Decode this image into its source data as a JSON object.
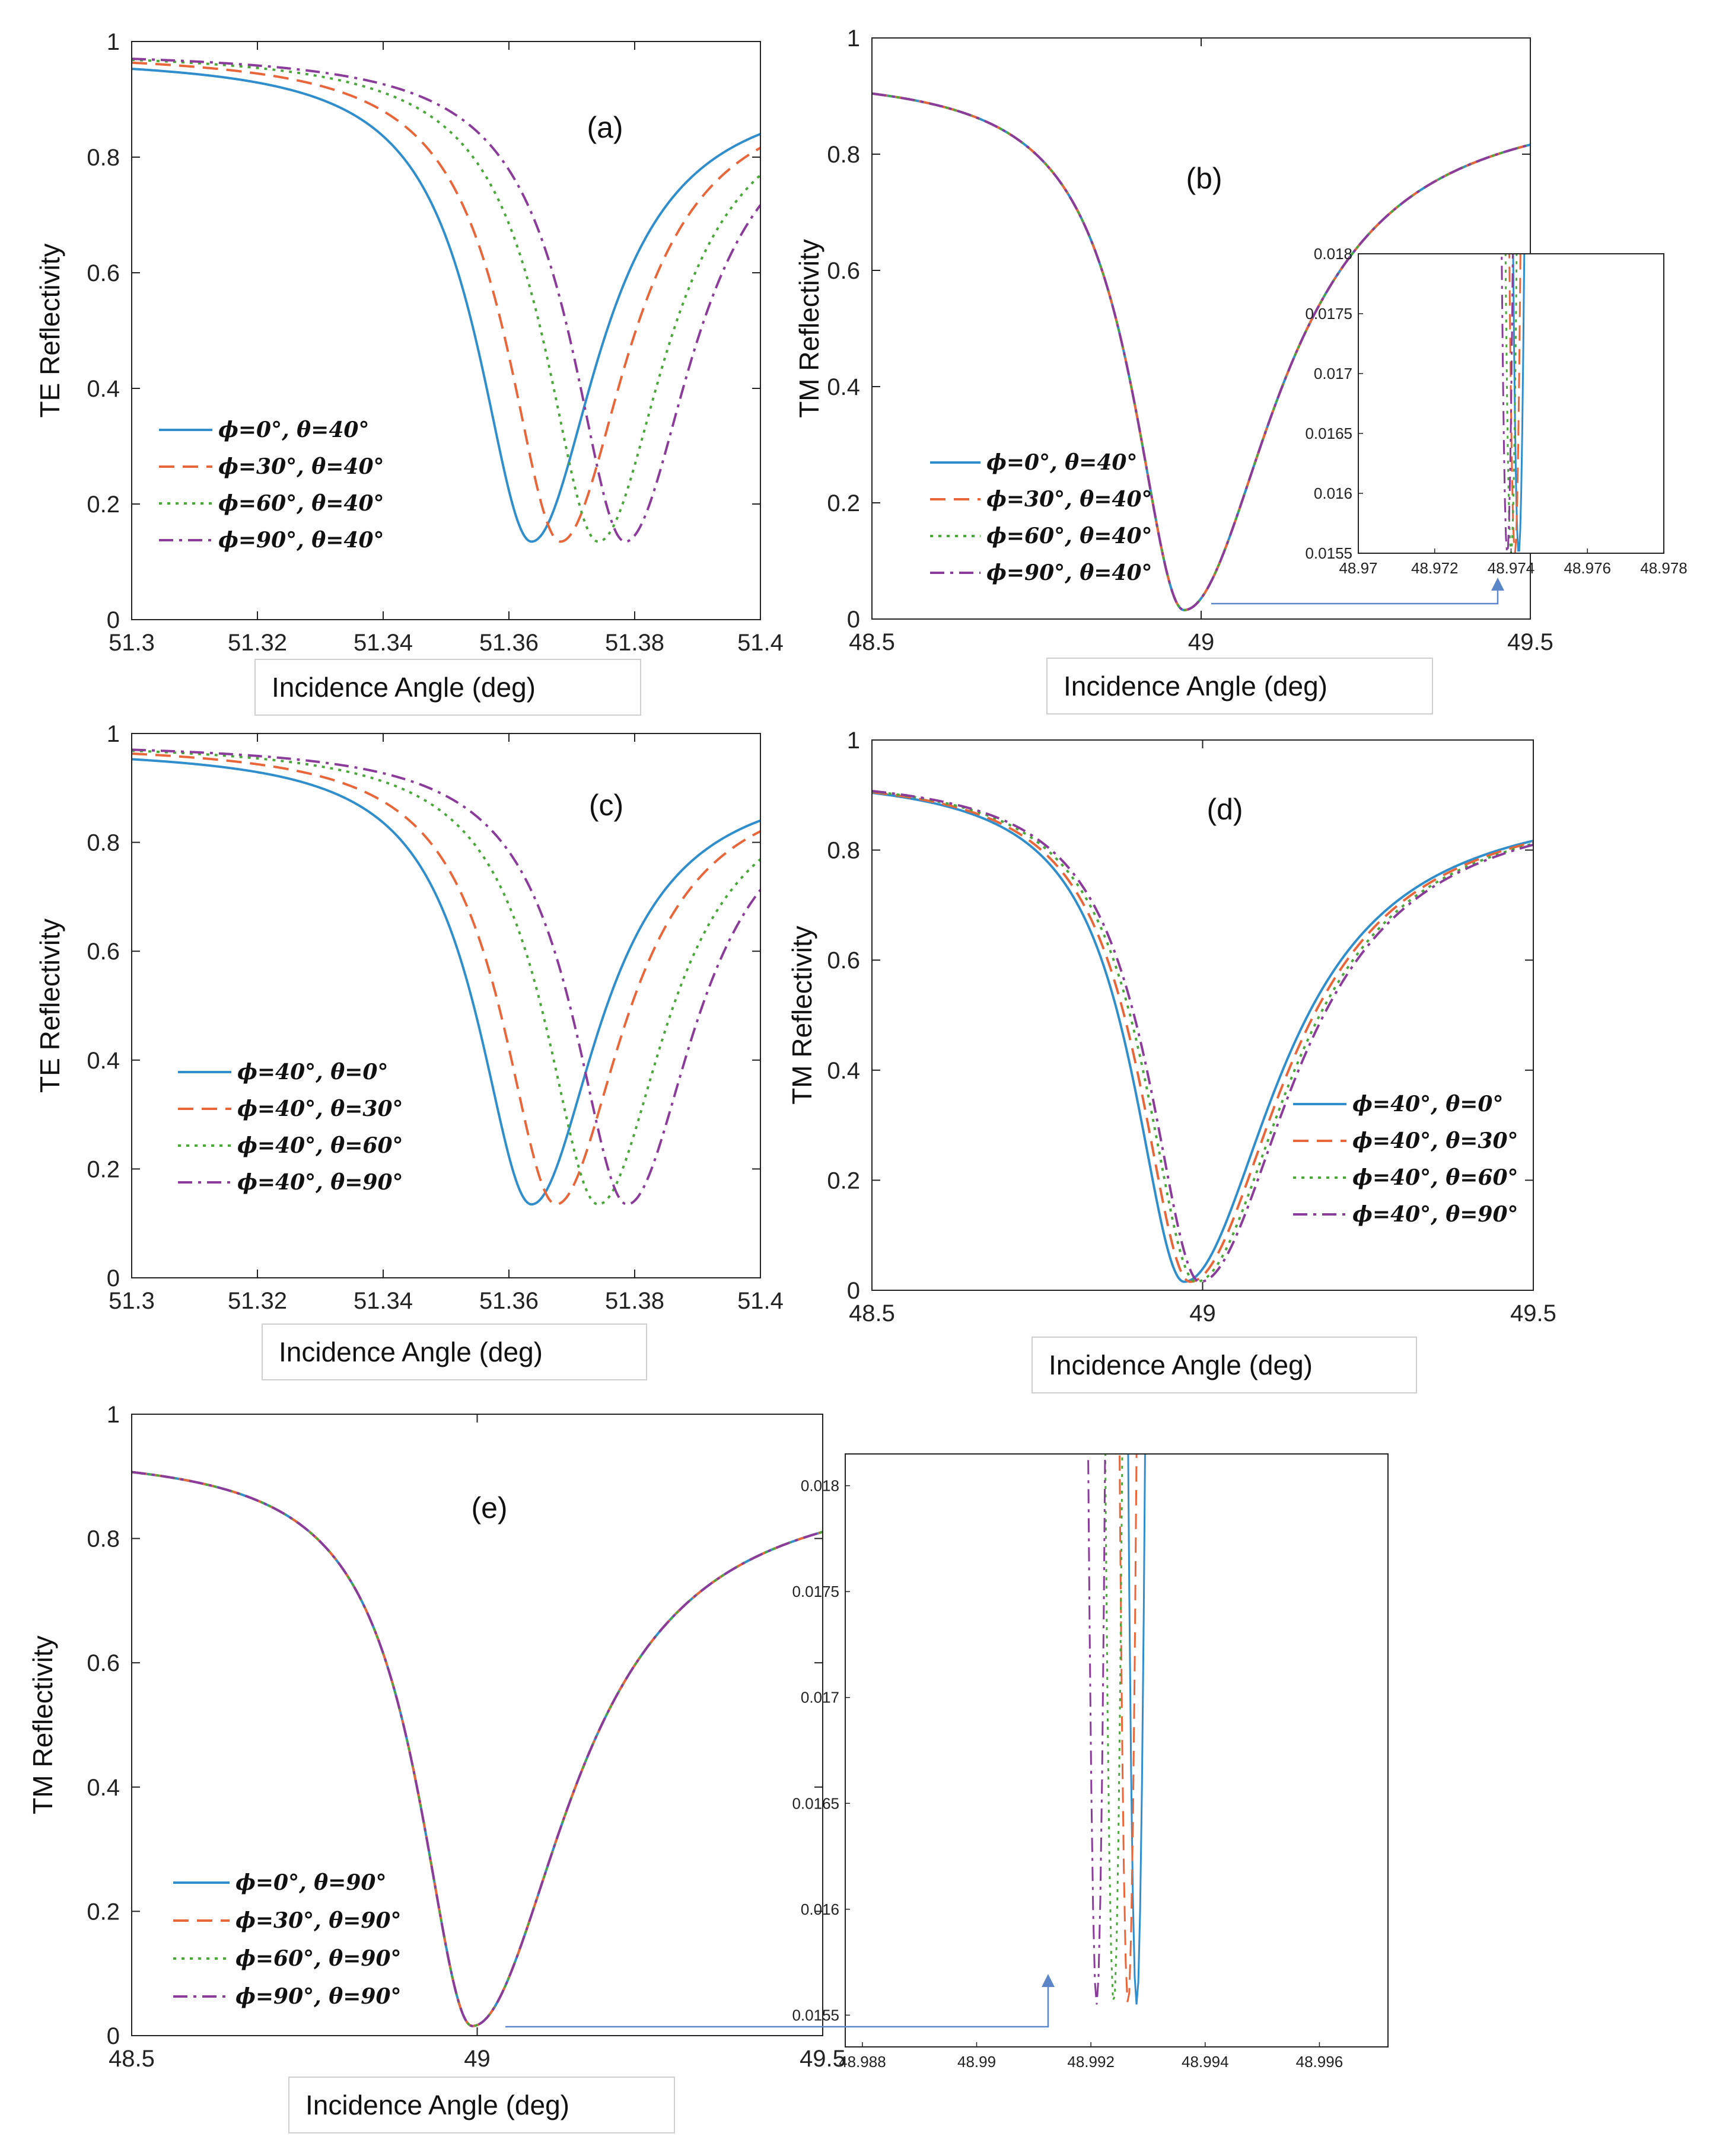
{
  "figure": {
    "shared_xlabel": "Incidence Angle (deg)"
  },
  "colors": {
    "s0": "#2f8ecb",
    "s1": "#e8663a",
    "s2": "#4aa83a",
    "s3": "#8b3c9b",
    "axis": "#222222",
    "arrow": "#5b86c7"
  },
  "chart_data": [
    {
      "id": "a",
      "panel_label": "(a)",
      "type": "line",
      "ylabel": "TE Reflectivity",
      "xlabel": "Incidence Angle (deg)",
      "xlim": [
        51.3,
        51.4
      ],
      "ylim": [
        0,
        1
      ],
      "xticks": [
        51.3,
        51.32,
        51.34,
        51.36,
        51.38,
        51.4
      ],
      "xtick_labels": [
        "51.3",
        "51.32",
        "51.34",
        "51.36",
        "51.38",
        "51.4"
      ],
      "yticks": [
        0,
        0.2,
        0.4,
        0.6,
        0.8,
        1
      ],
      "ytick_labels": [
        "0",
        "0.2",
        "0.4",
        "0.6",
        "0.8",
        "1"
      ],
      "legend_position": "lower-left",
      "series": [
        {
          "name": "ϕ=0°, θ=40°",
          "style": "solid",
          "color": "#2f8ecb",
          "x0": 51.3636,
          "r_min": 0.135,
          "r_left": 0.975,
          "hw_left": 0.0105,
          "r_right": 0.93,
          "hw_right": 0.013
        },
        {
          "name": "ϕ=30°, θ=40°",
          "style": "dashed",
          "color": "#e8663a",
          "x0": 51.3682,
          "r_min": 0.135,
          "r_left": 0.983,
          "hw_left": 0.0105,
          "r_right": 0.93,
          "hw_right": 0.013
        },
        {
          "name": "ϕ=60°, θ=40°",
          "style": "dotted",
          "color": "#4aa83a",
          "x0": 51.3742,
          "r_min": 0.135,
          "r_left": 0.985,
          "hw_left": 0.0105,
          "r_right": 0.93,
          "hw_right": 0.013
        },
        {
          "name": "ϕ=90°, θ=40°",
          "style": "dashdot",
          "color": "#8b3c9b",
          "x0": 51.3785,
          "r_min": 0.135,
          "r_left": 0.985,
          "hw_left": 0.0105,
          "r_right": 0.93,
          "hw_right": 0.013
        }
      ]
    },
    {
      "id": "b",
      "panel_label": "(b)",
      "type": "line",
      "ylabel": "TM Reflectivity",
      "xlabel": "Incidence Angle (deg)",
      "xlim": [
        48.5,
        49.5
      ],
      "ylim": [
        0,
        1
      ],
      "xticks": [
        48.5,
        49,
        49.5
      ],
      "xtick_labels": [
        "48.5",
        "49",
        "49.5"
      ],
      "yticks": [
        0,
        0.2,
        0.4,
        0.6,
        0.8,
        1
      ],
      "ytick_labels": [
        "0",
        "0.2",
        "0.4",
        "0.6",
        "0.8",
        "1"
      ],
      "legend_position": "lower-left",
      "series": [
        {
          "name": "ϕ=0°, θ=40°",
          "style": "solid",
          "color": "#2f8ecb",
          "x0": 48.974,
          "r_min": 0.0155,
          "r_left": 0.94,
          "hw_left": 0.095,
          "r_right": 0.9,
          "hw_right": 0.17
        },
        {
          "name": "ϕ=30°, θ=40°",
          "style": "dashed",
          "color": "#e8663a",
          "x0": 48.974,
          "r_min": 0.0155,
          "r_left": 0.94,
          "hw_left": 0.095,
          "r_right": 0.9,
          "hw_right": 0.17
        },
        {
          "name": "ϕ=60°, θ=40°",
          "style": "dotted",
          "color": "#4aa83a",
          "x0": 48.974,
          "r_min": 0.0155,
          "r_left": 0.94,
          "hw_left": 0.095,
          "r_right": 0.9,
          "hw_right": 0.17
        },
        {
          "name": "ϕ=90°, θ=40°",
          "style": "dashdot",
          "color": "#8b3c9b",
          "x0": 48.974,
          "r_min": 0.0155,
          "r_left": 0.94,
          "hw_left": 0.095,
          "r_right": 0.9,
          "hw_right": 0.17
        }
      ],
      "inset": {
        "xlim": [
          48.97,
          48.978
        ],
        "ylim": [
          0.0155,
          0.018
        ],
        "xticks": [
          48.97,
          48.972,
          48.974,
          48.976,
          48.978
        ],
        "xtick_labels": [
          "48.97",
          "48.972",
          "48.974",
          "48.976",
          "48.978"
        ],
        "yticks": [
          0.0155,
          0.016,
          0.0165,
          0.017,
          0.0175,
          0.018
        ],
        "ytick_labels": [
          "0.0155",
          "0.016",
          "0.0165",
          "0.017",
          "0.0175",
          "0.018"
        ],
        "series": [
          {
            "name": "ϕ=0°, θ=40°",
            "style": "solid",
            "color": "#2f8ecb",
            "x0": 48.9742,
            "y_min": 0.0155,
            "curv": 118000
          },
          {
            "name": "ϕ=30°, θ=40°",
            "style": "dashed",
            "color": "#e8663a",
            "x0": 48.9741,
            "y_min": 0.0155,
            "curv": 118000
          },
          {
            "name": "ϕ=60°, θ=40°",
            "style": "dotted",
            "color": "#4aa83a",
            "x0": 48.974,
            "y_min": 0.0155,
            "curv": 118000
          },
          {
            "name": "ϕ=90°, θ=40°",
            "style": "dashdot",
            "color": "#8b3c9b",
            "x0": 48.9739,
            "y_min": 0.0155,
            "curv": 118000
          }
        ]
      }
    },
    {
      "id": "c",
      "panel_label": "(c)",
      "type": "line",
      "ylabel": "TE Reflectivity",
      "xlabel": "Incidence Angle (deg)",
      "xlim": [
        51.3,
        51.4
      ],
      "ylim": [
        0,
        1
      ],
      "xticks": [
        51.3,
        51.32,
        51.34,
        51.36,
        51.38,
        51.4
      ],
      "xtick_labels": [
        "51.3",
        "51.32",
        "51.34",
        "51.36",
        "51.38",
        "51.4"
      ],
      "yticks": [
        0,
        0.2,
        0.4,
        0.6,
        0.8,
        1
      ],
      "ytick_labels": [
        "0",
        "0.2",
        "0.4",
        "0.6",
        "0.8",
        "1"
      ],
      "legend_position": "lower-left",
      "series": [
        {
          "name": "ϕ=40°, θ=0°",
          "style": "solid",
          "color": "#2f8ecb",
          "x0": 51.3636,
          "r_min": 0.135,
          "r_left": 0.975,
          "hw_left": 0.0105,
          "r_right": 0.93,
          "hw_right": 0.013
        },
        {
          "name": "ϕ=40°, θ=30°",
          "style": "dashed",
          "color": "#e8663a",
          "x0": 51.3675,
          "r_min": 0.135,
          "r_left": 0.983,
          "hw_left": 0.0105,
          "r_right": 0.93,
          "hw_right": 0.013
        },
        {
          "name": "ϕ=40°, θ=60°",
          "style": "dotted",
          "color": "#4aa83a",
          "x0": 51.3742,
          "r_min": 0.135,
          "r_left": 0.985,
          "hw_left": 0.0105,
          "r_right": 0.93,
          "hw_right": 0.013
        },
        {
          "name": "ϕ=40°, θ=90°",
          "style": "dashdot",
          "color": "#8b3c9b",
          "x0": 51.3788,
          "r_min": 0.135,
          "r_left": 0.985,
          "hw_left": 0.0105,
          "r_right": 0.93,
          "hw_right": 0.013
        }
      ]
    },
    {
      "id": "d",
      "panel_label": "(d)",
      "type": "line",
      "ylabel": "TM Reflectivity",
      "xlabel": "Incidence Angle (deg)",
      "xlim": [
        48.5,
        49.5
      ],
      "ylim": [
        0,
        1
      ],
      "xticks": [
        48.5,
        49,
        49.5
      ],
      "xtick_labels": [
        "48.5",
        "49",
        "49.5"
      ],
      "yticks": [
        0,
        0.2,
        0.4,
        0.6,
        0.8,
        1
      ],
      "ytick_labels": [
        "0",
        "0.2",
        "0.4",
        "0.6",
        "0.8",
        "1"
      ],
      "legend_position": "lower-right",
      "series": [
        {
          "name": "ϕ=40°, θ=0°",
          "style": "solid",
          "color": "#2f8ecb",
          "x0": 48.972,
          "r_min": 0.0155,
          "r_left": 0.94,
          "hw_left": 0.095,
          "r_right": 0.9,
          "hw_right": 0.17
        },
        {
          "name": "ϕ=40°, θ=30°",
          "style": "dashed",
          "color": "#e8663a",
          "x0": 48.981,
          "r_min": 0.0155,
          "r_left": 0.94,
          "hw_left": 0.095,
          "r_right": 0.9,
          "hw_right": 0.17
        },
        {
          "name": "ϕ=40°, θ=60°",
          "style": "dotted",
          "color": "#4aa83a",
          "x0": 48.99,
          "r_min": 0.0155,
          "r_left": 0.94,
          "hw_left": 0.095,
          "r_right": 0.9,
          "hw_right": 0.17
        },
        {
          "name": "ϕ=40°, θ=90°",
          "style": "dashdot",
          "color": "#8b3c9b",
          "x0": 48.996,
          "r_min": 0.0155,
          "r_left": 0.94,
          "hw_left": 0.095,
          "r_right": 0.9,
          "hw_right": 0.17
        }
      ]
    },
    {
      "id": "e",
      "panel_label": "(e)",
      "type": "line",
      "ylabel": "TM Reflectivity",
      "xlabel": "Incidence Angle (deg)",
      "xlim": [
        48.5,
        49.5
      ],
      "ylim": [
        0,
        1
      ],
      "xticks": [
        48.5,
        49,
        49.5
      ],
      "xtick_labels": [
        "48.5",
        "49",
        "49.5"
      ],
      "yticks": [
        0,
        0.2,
        0.4,
        0.6,
        0.8,
        1
      ],
      "ytick_labels": [
        "0",
        "0.2",
        "0.4",
        "0.6",
        "0.8",
        "1"
      ],
      "legend_position": "lower-left",
      "series": [
        {
          "name": "ϕ=0°, θ=90°",
          "style": "solid",
          "color": "#2f8ecb",
          "x0": 48.993,
          "r_min": 0.0155,
          "r_left": 0.94,
          "hw_left": 0.095,
          "r_right": 0.9,
          "hw_right": 0.17
        },
        {
          "name": "ϕ=30°, θ=90°",
          "style": "dashed",
          "color": "#e8663a",
          "x0": 48.993,
          "r_min": 0.0155,
          "r_left": 0.94,
          "hw_left": 0.095,
          "r_right": 0.9,
          "hw_right": 0.17
        },
        {
          "name": "ϕ=60°, θ=90°",
          "style": "dotted",
          "color": "#4aa83a",
          "x0": 48.993,
          "r_min": 0.0155,
          "r_left": 0.94,
          "hw_left": 0.095,
          "r_right": 0.9,
          "hw_right": 0.17
        },
        {
          "name": "ϕ=90°, θ=90°",
          "style": "dashdot",
          "color": "#8b3c9b",
          "x0": 48.993,
          "r_min": 0.0155,
          "r_left": 0.94,
          "hw_left": 0.095,
          "r_right": 0.9,
          "hw_right": 0.17
        }
      ],
      "inset": {
        "xlim": [
          48.9877,
          48.9972
        ],
        "ylim": [
          0.01535,
          0.01815
        ],
        "xticks": [
          48.988,
          48.99,
          48.992,
          48.994,
          48.996
        ],
        "xtick_labels": [
          "48.988",
          "48.99",
          "48.992",
          "48.994",
          "48.996"
        ],
        "yticks": [
          0.0155,
          0.016,
          0.0165,
          0.017,
          0.0175,
          0.018
        ],
        "ytick_labels": [
          "0.0155",
          "0.016",
          "0.0165",
          "0.017",
          "0.0175",
          "0.018"
        ],
        "series": [
          {
            "name": "ϕ=0°, θ=90°",
            "style": "solid",
            "color": "#2f8ecb",
            "x0": 48.9928,
            "y_min": 0.01555,
            "curv": 118000
          },
          {
            "name": "ϕ=30°, θ=90°",
            "style": "dashed",
            "color": "#e8663a",
            "x0": 48.99265,
            "y_min": 0.01555,
            "curv": 118000
          },
          {
            "name": "ϕ=60°, θ=90°",
            "style": "dotted",
            "color": "#4aa83a",
            "x0": 48.9924,
            "y_min": 0.01555,
            "curv": 118000
          },
          {
            "name": "ϕ=90°, θ=90°",
            "style": "dashdot",
            "color": "#8b3c9b",
            "x0": 48.9921,
            "y_min": 0.01555,
            "curv": 118000
          }
        ]
      }
    }
  ]
}
